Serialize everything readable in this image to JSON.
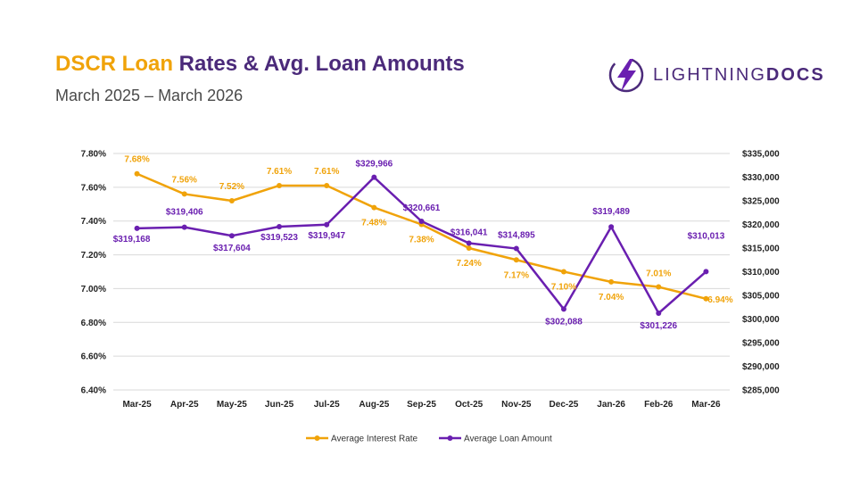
{
  "header": {
    "title_accent": "DSCR Loan",
    "title_main": "Rates & Avg. Loan Amounts",
    "subtitle": "March 2025 – March 2026"
  },
  "logo": {
    "icon": "lightning-bolt-icon",
    "text_light": "LIGHTNING",
    "text_bold": "DOCS",
    "color": "#4b2a7a"
  },
  "colors": {
    "rate": "#f0a30a",
    "amount": "#6a1fb0",
    "grid": "#d9d9d9"
  },
  "chart_data": {
    "type": "line",
    "categories": [
      "Mar-25",
      "Apr-25",
      "May-25",
      "Jun-25",
      "Jul-25",
      "Aug-25",
      "Sep-25",
      "Oct-25",
      "Nov-25",
      "Dec-25",
      "Jan-26",
      "Feb-26",
      "Mar-26"
    ],
    "series": [
      {
        "name": "Average Interest Rate",
        "axis": "left",
        "values": [
          7.68,
          7.56,
          7.52,
          7.61,
          7.61,
          7.48,
          7.38,
          7.24,
          7.17,
          7.1,
          7.04,
          7.01,
          6.94
        ],
        "labels": [
          "7.68%",
          "7.56%",
          "7.52%",
          "7.61%",
          "7.61%",
          "7.48%",
          "7.38%",
          "7.24%",
          "7.17%",
          "7.10%",
          "7.04%",
          "7.01%",
          "6.94%"
        ]
      },
      {
        "name": "Average Loan Amount",
        "axis": "right",
        "values": [
          319168,
          319406,
          317604,
          319523,
          319947,
          329966,
          320661,
          316041,
          314895,
          302088,
          319489,
          301226,
          310013
        ],
        "labels": [
          "$319,168",
          "$319,406",
          "$317,604",
          "$319,523",
          "$319,947",
          "$329,966",
          "$320,661",
          "$316,041",
          "$314,895",
          "$302,088",
          "$319,489",
          "$301,226",
          "$310,013"
        ]
      }
    ],
    "y_left": {
      "ylim": [
        6.4,
        7.8
      ],
      "ticks": [
        "6.40%",
        "6.60%",
        "6.80%",
        "7.00%",
        "7.20%",
        "7.40%",
        "7.60%",
        "7.80%"
      ]
    },
    "y_right": {
      "ylim": [
        285000,
        335000
      ],
      "ticks": [
        "$285,000",
        "$290,000",
        "$295,000",
        "$300,000",
        "$305,000",
        "$310,000",
        "$315,000",
        "$320,000",
        "$325,000",
        "$330,000",
        "$335,000"
      ]
    },
    "grid": true,
    "legend": "bottom"
  }
}
